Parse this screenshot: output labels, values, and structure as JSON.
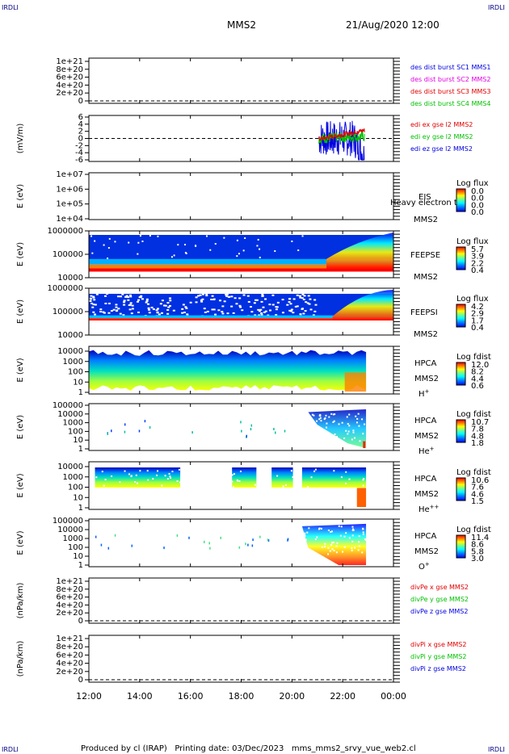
{
  "header": {
    "logo_left": "IRDLI",
    "logo_right": "IRDLI",
    "title": "MMS2",
    "datetime": "21/Aug/2020 12:00"
  },
  "footer": {
    "logo_left": "IRDLI",
    "logo_right": "IRDLI",
    "text": "Produced by cl (IRAP)   Printing date: 03/Dec/2023   mms_mms2_srvy_vue_web2.cl"
  },
  "colors": {
    "red": "#e00000",
    "magenta": "#e000e0",
    "green": "#00c000",
    "blue": "#0000e0",
    "navy": "#000080",
    "colorbar": [
      "#0000ff",
      "#0080ff",
      "#00ffff",
      "#80ff80",
      "#ffff00",
      "#ff8000",
      "#ff0000"
    ]
  },
  "chart_data": [
    {
      "id": "p1",
      "type": "line",
      "ylabel": "",
      "yticks": [
        "1e+21",
        "8e+20",
        "6e+20",
        "4e+20",
        "2e+20",
        "0"
      ],
      "legend": [
        {
          "text": "des dist burst SC1 MMS1",
          "color": "blue"
        },
        {
          "text": "des dist burst SC2 MMS2",
          "color": "magenta"
        },
        {
          "text": "des dist burst SC3 MMS3",
          "color": "red"
        },
        {
          "text": "des dist burst SC4 MMS4",
          "color": "green"
        }
      ]
    },
    {
      "id": "p2",
      "type": "line",
      "ylabel": "(mV/m)",
      "yticks": [
        "6",
        "4",
        "2",
        "0",
        "-2",
        "-4",
        "-6"
      ],
      "ylim": [
        -6,
        6
      ],
      "legend": [
        {
          "text": "edi ex gse l2 MMS2",
          "color": "red"
        },
        {
          "text": "edi ey gse l2 MMS2",
          "color": "green"
        },
        {
          "text": "edi ez gse l2 MMS2",
          "color": "blue"
        }
      ]
    },
    {
      "id": "p3",
      "type": "heatmap",
      "ylabel": "E (eV)",
      "yticks": [
        "1e+07",
        "1e+06",
        "1e+05",
        "1e+04"
      ],
      "instrument": [
        "EIS",
        "MMS2"
      ],
      "overlay_text": "Heavy electron to",
      "cb_title": "Log flux",
      "cb_values": [
        "0.0",
        "0.0",
        "0.0",
        "0.0"
      ]
    },
    {
      "id": "p4",
      "type": "heatmap",
      "ylabel": "E (eV)",
      "yticks": [
        "1000000",
        "100000",
        "10000"
      ],
      "instrument": [
        "FEEPSE",
        "MMS2"
      ],
      "cb_title": "Log flux",
      "cb_values": [
        "5.7",
        "3.9",
        "2.2",
        "0.4"
      ]
    },
    {
      "id": "p5",
      "type": "heatmap",
      "ylabel": "E (eV)",
      "yticks": [
        "1000000",
        "100000",
        "10000"
      ],
      "instrument": [
        "FEEPSI",
        "MMS2"
      ],
      "cb_title": "Log flux",
      "cb_values": [
        "4.2",
        "2.9",
        "1.7",
        "0.4"
      ]
    },
    {
      "id": "p6",
      "type": "heatmap",
      "ylabel": "E (eV)",
      "yticks": [
        "10000",
        "1000",
        "100",
        "10",
        "1"
      ],
      "instrument": [
        "HPCA",
        "MMS2",
        "H+"
      ],
      "cb_title": "Log fdist",
      "cb_values": [
        "12.0",
        "8.2",
        "4.4",
        "0.6"
      ]
    },
    {
      "id": "p7",
      "type": "heatmap",
      "ylabel": "E (eV)",
      "yticks": [
        "100000",
        "10000",
        "1000",
        "100",
        "10",
        "1"
      ],
      "instrument": [
        "HPCA",
        "MMS2",
        "He+"
      ],
      "cb_title": "Log fdist",
      "cb_values": [
        "10.7",
        "7.8",
        "4.8",
        "1.8"
      ]
    },
    {
      "id": "p8",
      "type": "heatmap",
      "ylabel": "E (eV)",
      "yticks": [
        "10000",
        "1000",
        "100",
        "10",
        "1"
      ],
      "instrument": [
        "HPCA",
        "MMS2",
        "He++"
      ],
      "cb_title": "Log fdist",
      "cb_values": [
        "10.6",
        "7.6",
        "4.6",
        "1.5"
      ]
    },
    {
      "id": "p9",
      "type": "heatmap",
      "ylabel": "E (eV)",
      "yticks": [
        "100000",
        "10000",
        "1000",
        "100",
        "10",
        "1"
      ],
      "instrument": [
        "HPCA",
        "MMS2",
        "O+"
      ],
      "cb_title": "Log fdist",
      "cb_values": [
        "11.4",
        "8.6",
        "5.8",
        "3.0"
      ]
    },
    {
      "id": "p10",
      "type": "line",
      "ylabel": "(nPa/km)",
      "yticks": [
        "1e+21",
        "8e+20",
        "6e+20",
        "4e+20",
        "2e+20",
        "0"
      ],
      "legend": [
        {
          "text": "divPe x gse MMS2",
          "color": "red"
        },
        {
          "text": "divPe y gse MMS2",
          "color": "green"
        },
        {
          "text": "divPe z gse MMS2",
          "color": "blue"
        }
      ]
    },
    {
      "id": "p11",
      "type": "line",
      "ylabel": "(nPa/km)",
      "yticks": [
        "1e+21",
        "8e+20",
        "6e+20",
        "4e+20",
        "2e+20",
        "0"
      ],
      "legend": [
        {
          "text": "divPi x gse MMS2",
          "color": "red"
        },
        {
          "text": "divPi y gse MMS2",
          "color": "green"
        },
        {
          "text": "divPi z gse MMS2",
          "color": "blue"
        }
      ]
    }
  ],
  "xaxis": {
    "ticks": [
      "12:00",
      "14:00",
      "16:00",
      "18:00",
      "20:00",
      "22:00",
      "00:00"
    ]
  }
}
